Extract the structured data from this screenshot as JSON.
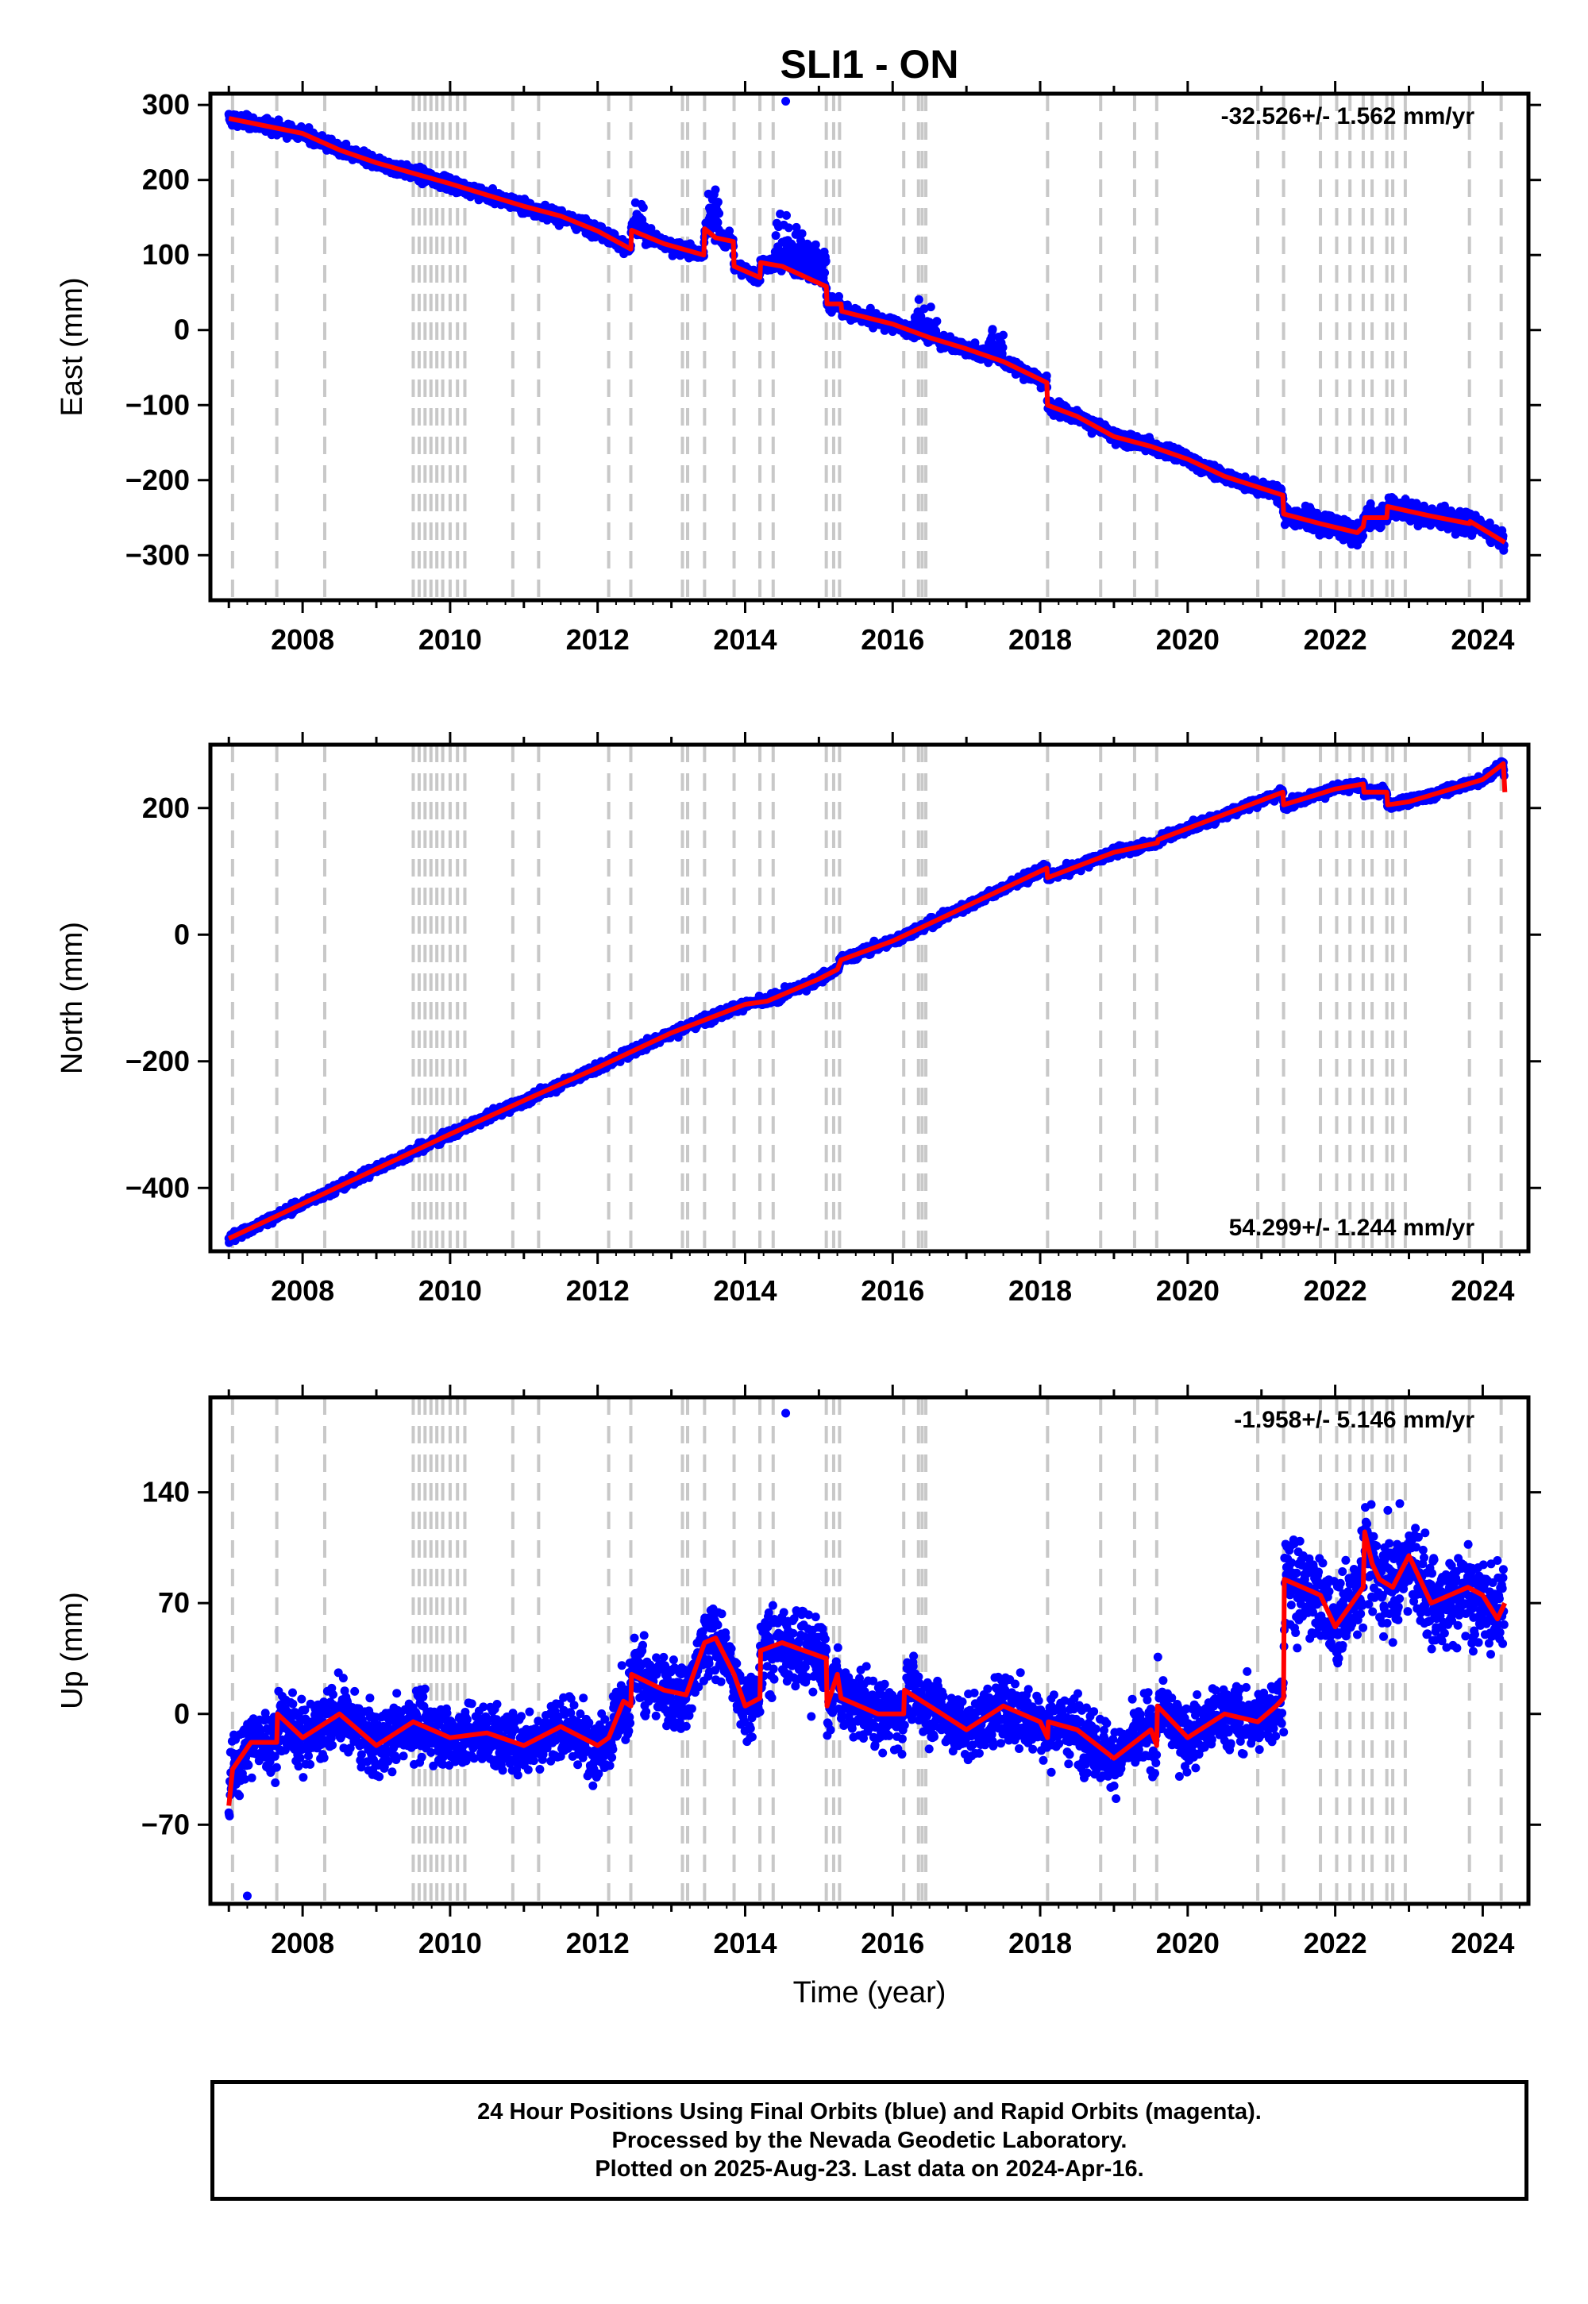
{
  "title": "SLI1 - ON",
  "xlabel": "Time (year)",
  "caption": [
    "24 Hour Positions Using Final Orbits (blue) and Rapid Orbits (magenta).",
    "Processed by the Nevada Geodetic Laboratory.",
    "Plotted on 2025-Aug-23. Last data on 2024-Apr-16."
  ],
  "colors": {
    "points": "#0000ff",
    "model": "#ff0000",
    "steps": "#c8c8c8",
    "frame": "#000000"
  },
  "chart_data": [
    {
      "type": "scatter",
      "component": "East",
      "ylabel": "East (mm)",
      "rate": "-32.526+/- 1.562 mm/yr",
      "rate_position": "top-right",
      "xlim": [
        2006.75,
        2024.62
      ],
      "ylim": [
        -360,
        315
      ],
      "xticks": [
        2008,
        2010,
        2012,
        2014,
        2016,
        2018,
        2020,
        2022,
        2024
      ],
      "yticks": [
        300,
        200,
        100,
        0,
        -100,
        -200,
        -300
      ],
      "step_epochs": [
        2007.05,
        2007.65,
        2008.3,
        2009.5,
        2009.58,
        2009.66,
        2009.74,
        2009.82,
        2009.9,
        2010.0,
        2010.1,
        2010.2,
        2010.85,
        2011.2,
        2012.15,
        2012.45,
        2013.15,
        2013.22,
        2013.45,
        2013.85,
        2014.2,
        2014.38,
        2015.1,
        2015.2,
        2015.28,
        2016.15,
        2016.35,
        2016.4,
        2016.45,
        2018.1,
        2018.82,
        2019.28,
        2019.58,
        2020.95,
        2021.3,
        2021.8,
        2022.02,
        2022.2,
        2022.38,
        2022.5,
        2022.7,
        2022.78,
        2022.95,
        2023.82,
        2024.25
      ],
      "model": {
        "x": [
          2007.0,
          2007.6,
          2008.0,
          2008.5,
          2009.0,
          2009.5,
          2010.0,
          2010.5,
          2011.0,
          2011.5,
          2012.0,
          2012.45,
          2012.46,
          2012.9,
          2013.44,
          2013.45,
          2013.6,
          2013.84,
          2013.85,
          2014.2,
          2014.21,
          2014.5,
          2015.1,
          2015.11,
          2015.3,
          2015.31,
          2016.0,
          2016.5,
          2017.0,
          2017.5,
          2018.09,
          2018.1,
          2018.5,
          2019.0,
          2019.5,
          2020.0,
          2020.5,
          2021.29,
          2021.3,
          2021.8,
          2022.3,
          2022.38,
          2022.4,
          2022.7,
          2022.71,
          2023.3,
          2023.82,
          2023.83,
          2024.3
        ],
        "y": [
          282,
          270,
          262,
          240,
          223,
          209,
          195,
          180,
          165,
          152,
          132,
          108,
          133,
          115,
          100,
          135,
          123,
          118,
          85,
          70,
          90,
          85,
          58,
          35,
          35,
          25,
          8,
          -10,
          -25,
          -42,
          -70,
          -100,
          -115,
          -142,
          -155,
          -172,
          -195,
          -220,
          -245,
          -258,
          -270,
          -262,
          -250,
          -250,
          -235,
          -248,
          -258,
          -255,
          -283
        ]
      },
      "points": {
        "generation": "dense daily series following the model with scatter; large excursions near 2012.5, 2013.1, 2013.6, 2014.4-2015.1, 2016.3-2016.6, 2017.4",
        "noise_mm": 6,
        "outliers_max": 305
      }
    },
    {
      "type": "scatter",
      "component": "North",
      "ylabel": "North (mm)",
      "rate": "54.299+/- 1.244 mm/yr",
      "rate_position": "bottom-right",
      "xlim": [
        2006.75,
        2024.62
      ],
      "ylim": [
        -500,
        300
      ],
      "xticks": [
        2008,
        2010,
        2012,
        2014,
        2016,
        2018,
        2020,
        2022,
        2024
      ],
      "yticks": [
        200,
        0,
        -200,
        -400
      ],
      "step_epochs": [
        2007.05,
        2007.65,
        2008.3,
        2009.5,
        2009.58,
        2009.66,
        2009.74,
        2009.82,
        2009.9,
        2010.0,
        2010.1,
        2010.2,
        2010.85,
        2011.2,
        2012.15,
        2012.45,
        2013.15,
        2013.22,
        2013.45,
        2013.85,
        2014.2,
        2014.38,
        2015.1,
        2015.2,
        2015.28,
        2016.15,
        2016.35,
        2016.4,
        2016.45,
        2018.1,
        2018.82,
        2019.28,
        2019.58,
        2020.95,
        2021.3,
        2021.8,
        2022.02,
        2022.2,
        2022.38,
        2022.5,
        2022.7,
        2022.78,
        2022.95,
        2023.82,
        2024.25
      ],
      "model": {
        "x": [
          2007.0,
          2008.0,
          2009.0,
          2010.0,
          2011.0,
          2012.0,
          2013.0,
          2014.0,
          2014.3,
          2015.0,
          2015.25,
          2015.3,
          2016.0,
          2017.0,
          2018.09,
          2018.1,
          2019.0,
          2019.59,
          2019.6,
          2020.5,
          2021.29,
          2021.3,
          2022.0,
          2022.38,
          2022.39,
          2022.7,
          2022.71,
          2023.0,
          2024.0,
          2024.28,
          2024.3
        ],
        "y": [
          -480,
          -425,
          -370,
          -315,
          -262,
          -210,
          -155,
          -110,
          -105,
          -70,
          -55,
          -40,
          -10,
          45,
          105,
          90,
          130,
          145,
          150,
          190,
          225,
          205,
          230,
          238,
          225,
          225,
          205,
          210,
          245,
          270,
          225
        ]
      },
      "points": {
        "generation": "dense daily series following the model with scatter",
        "noise_mm": 5
      }
    },
    {
      "type": "scatter",
      "component": "Up",
      "ylabel": "Up (mm)",
      "rate": "-1.958+/- 5.146 mm/yr",
      "rate_position": "top-right",
      "xlim": [
        2006.75,
        2024.62
      ],
      "ylim": [
        -120,
        200
      ],
      "xticks": [
        2008,
        2010,
        2012,
        2014,
        2016,
        2018,
        2020,
        2022,
        2024
      ],
      "yticks": [
        140,
        70,
        0,
        -70
      ],
      "step_epochs": [
        2007.05,
        2007.65,
        2008.3,
        2009.5,
        2009.58,
        2009.66,
        2009.74,
        2009.82,
        2009.9,
        2010.0,
        2010.1,
        2010.2,
        2010.85,
        2011.2,
        2012.15,
        2012.45,
        2013.15,
        2013.22,
        2013.45,
        2013.85,
        2014.2,
        2014.38,
        2015.1,
        2015.2,
        2015.28,
        2016.15,
        2016.35,
        2016.4,
        2016.45,
        2018.1,
        2018.82,
        2019.28,
        2019.58,
        2020.95,
        2021.3,
        2021.8,
        2022.02,
        2022.2,
        2022.38,
        2022.5,
        2022.7,
        2022.78,
        2022.95,
        2023.82,
        2024.25
      ],
      "model": {
        "x": [
          2007.0,
          2007.05,
          2007.3,
          2007.65,
          2007.66,
          2008.0,
          2008.5,
          2009.0,
          2009.5,
          2010.0,
          2010.5,
          2011.0,
          2011.5,
          2012.0,
          2012.15,
          2012.35,
          2012.45,
          2012.46,
          2012.9,
          2013.2,
          2013.45,
          2013.6,
          2013.85,
          2014.0,
          2014.2,
          2014.21,
          2014.5,
          2015.1,
          2015.11,
          2015.25,
          2015.3,
          2015.8,
          2016.15,
          2016.16,
          2016.5,
          2017.0,
          2017.5,
          2018.0,
          2018.1,
          2018.11,
          2018.5,
          2019.0,
          2019.5,
          2019.58,
          2019.59,
          2020.0,
          2020.5,
          2020.95,
          2021.2,
          2021.3,
          2021.31,
          2021.8,
          2022.0,
          2022.38,
          2022.4,
          2022.5,
          2022.6,
          2022.78,
          2023.0,
          2023.3,
          2023.8,
          2024.0,
          2024.2,
          2024.3
        ],
        "y": [
          -58,
          -35,
          -18,
          -18,
          0,
          -15,
          0,
          -20,
          -5,
          -15,
          -12,
          -20,
          -8,
          -20,
          -15,
          8,
          5,
          25,
          15,
          12,
          45,
          48,
          25,
          5,
          10,
          40,
          45,
          35,
          5,
          25,
          10,
          0,
          0,
          15,
          5,
          -10,
          5,
          -5,
          -15,
          -5,
          -10,
          -28,
          -10,
          -20,
          5,
          -15,
          0,
          -5,
          5,
          10,
          85,
          75,
          55,
          80,
          115,
          95,
          85,
          80,
          100,
          70,
          80,
          75,
          60,
          70
        ]
      },
      "points": {
        "generation": "dense daily series following the model with larger scatter and seasonal bursts",
        "noise_mm": 14,
        "outliers_min": -115,
        "outliers_max": 190
      }
    }
  ]
}
